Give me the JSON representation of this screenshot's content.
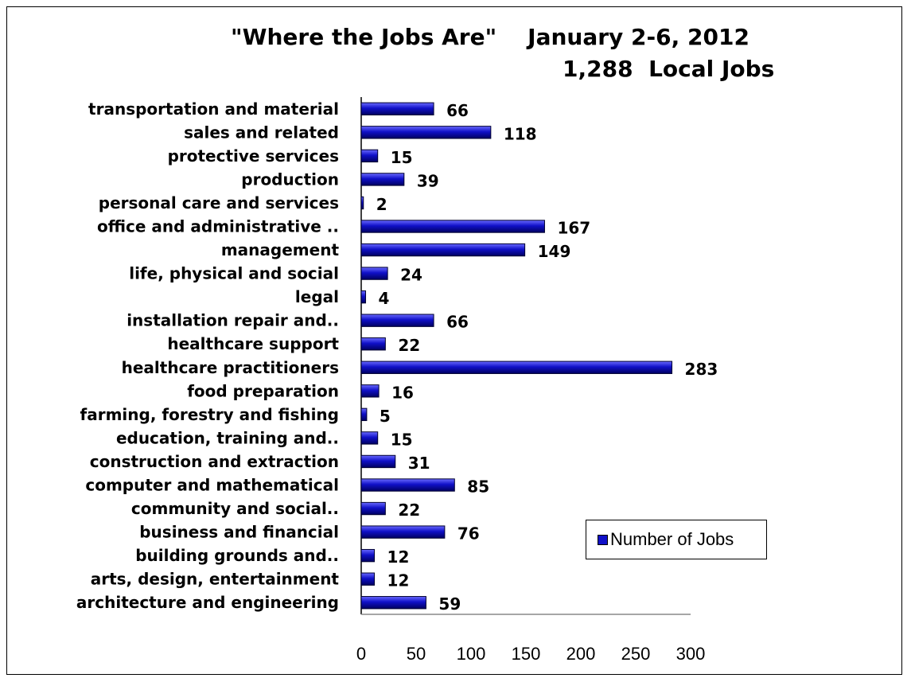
{
  "chart_data": {
    "type": "bar",
    "orientation": "horizontal",
    "title": "\"Where the Jobs Are\"    January 2-6, 2012",
    "subtitle": "1,288  Local Jobs",
    "categories": [
      "transportation and material",
      "sales and related",
      "protective services",
      "production",
      "personal care and services",
      "office and administrative ..",
      "management",
      "life, physical and social",
      "legal",
      "installation repair and..",
      "healthcare support",
      "healthcare practitioners",
      "food preparation",
      "farming, forestry and fishing",
      "education, training and..",
      "construction and extraction",
      "computer and mathematical",
      "community and social..",
      "business and financial",
      "building grounds and..",
      "arts, design, entertainment",
      "architecture and engineering"
    ],
    "series": [
      {
        "name": "Number of Jobs",
        "values": [
          66,
          118,
          15,
          39,
          2,
          167,
          149,
          24,
          4,
          66,
          22,
          283,
          16,
          5,
          15,
          31,
          85,
          22,
          76,
          12,
          12,
          59
        ]
      }
    ],
    "xlim": [
      0,
      300
    ],
    "xticks": [
      0,
      50,
      100,
      150,
      200,
      250,
      300
    ],
    "xlabel": "",
    "ylabel": "",
    "grid": false,
    "legend_position": "bottom-right",
    "bar_color": "#1010c8"
  }
}
